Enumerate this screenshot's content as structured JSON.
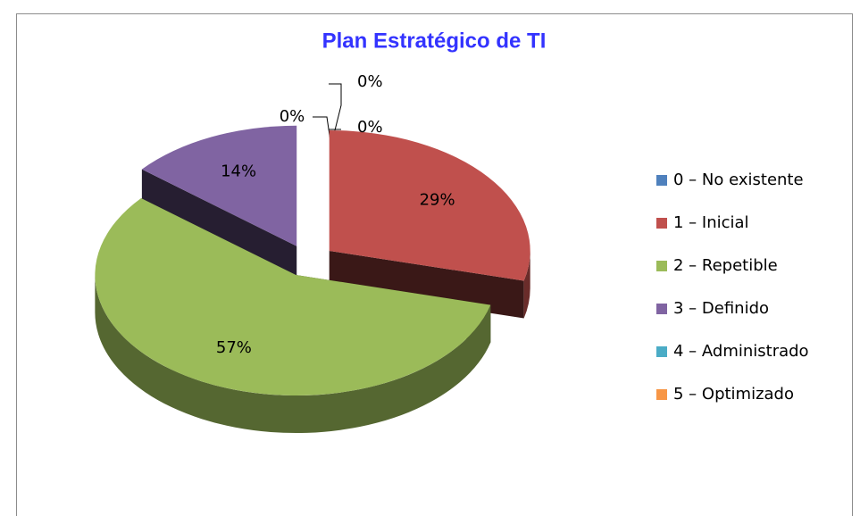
{
  "chart_data": {
    "type": "pie3d",
    "title": "Plan Estratégico de TI",
    "categories": [
      "0 – No existente",
      "1 – Inicial",
      "2 – Repetible",
      "3 – Definido",
      "4 – Administrado",
      "5 – Optimizado"
    ],
    "values": [
      0,
      29,
      57,
      14,
      0,
      0
    ],
    "value_labels": [
      "0%",
      "29%",
      "57%",
      "14%",
      "0%",
      "0%"
    ],
    "colors": [
      "#4f81bd",
      "#c0504d",
      "#9bbb59",
      "#8064a2",
      "#4bacc6",
      "#f79646"
    ],
    "legend": "right"
  }
}
